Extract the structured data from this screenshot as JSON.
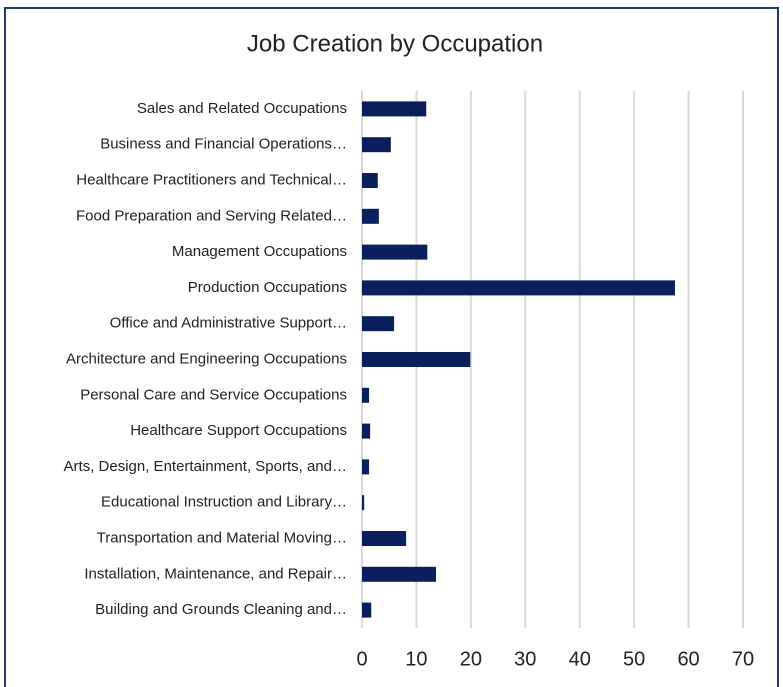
{
  "chart_data": {
    "type": "bar",
    "orientation": "horizontal",
    "title": "Job Creation by Occupation",
    "categories": [
      "Sales and Related Occupations",
      "Business and Financial Operations…",
      "Healthcare Practitioners and Technical…",
      "Food Preparation and Serving Related…",
      "Management Occupations",
      "Production Occupations",
      "Office and Administrative Support…",
      "Architecture and Engineering Occupations",
      "Personal Care and Service Occupations",
      "Healthcare Support Occupations",
      "Arts, Design, Entertainment, Sports, and…",
      "Educational Instruction and Library…",
      "Transportation and Material Moving…",
      "Installation, Maintenance, and Repair…",
      "Building and Grounds Cleaning and…"
    ],
    "values": [
      11.8,
      5.3,
      2.9,
      3.1,
      12,
      57.5,
      5.9,
      19.9,
      1.3,
      1.5,
      1.3,
      0.4,
      8.1,
      13.6,
      1.7
    ],
    "color": "#0b1f5c",
    "xlim": [
      0,
      70
    ],
    "xticks": [
      0,
      10,
      20,
      30,
      40,
      50,
      60,
      70
    ],
    "grid": true
  }
}
